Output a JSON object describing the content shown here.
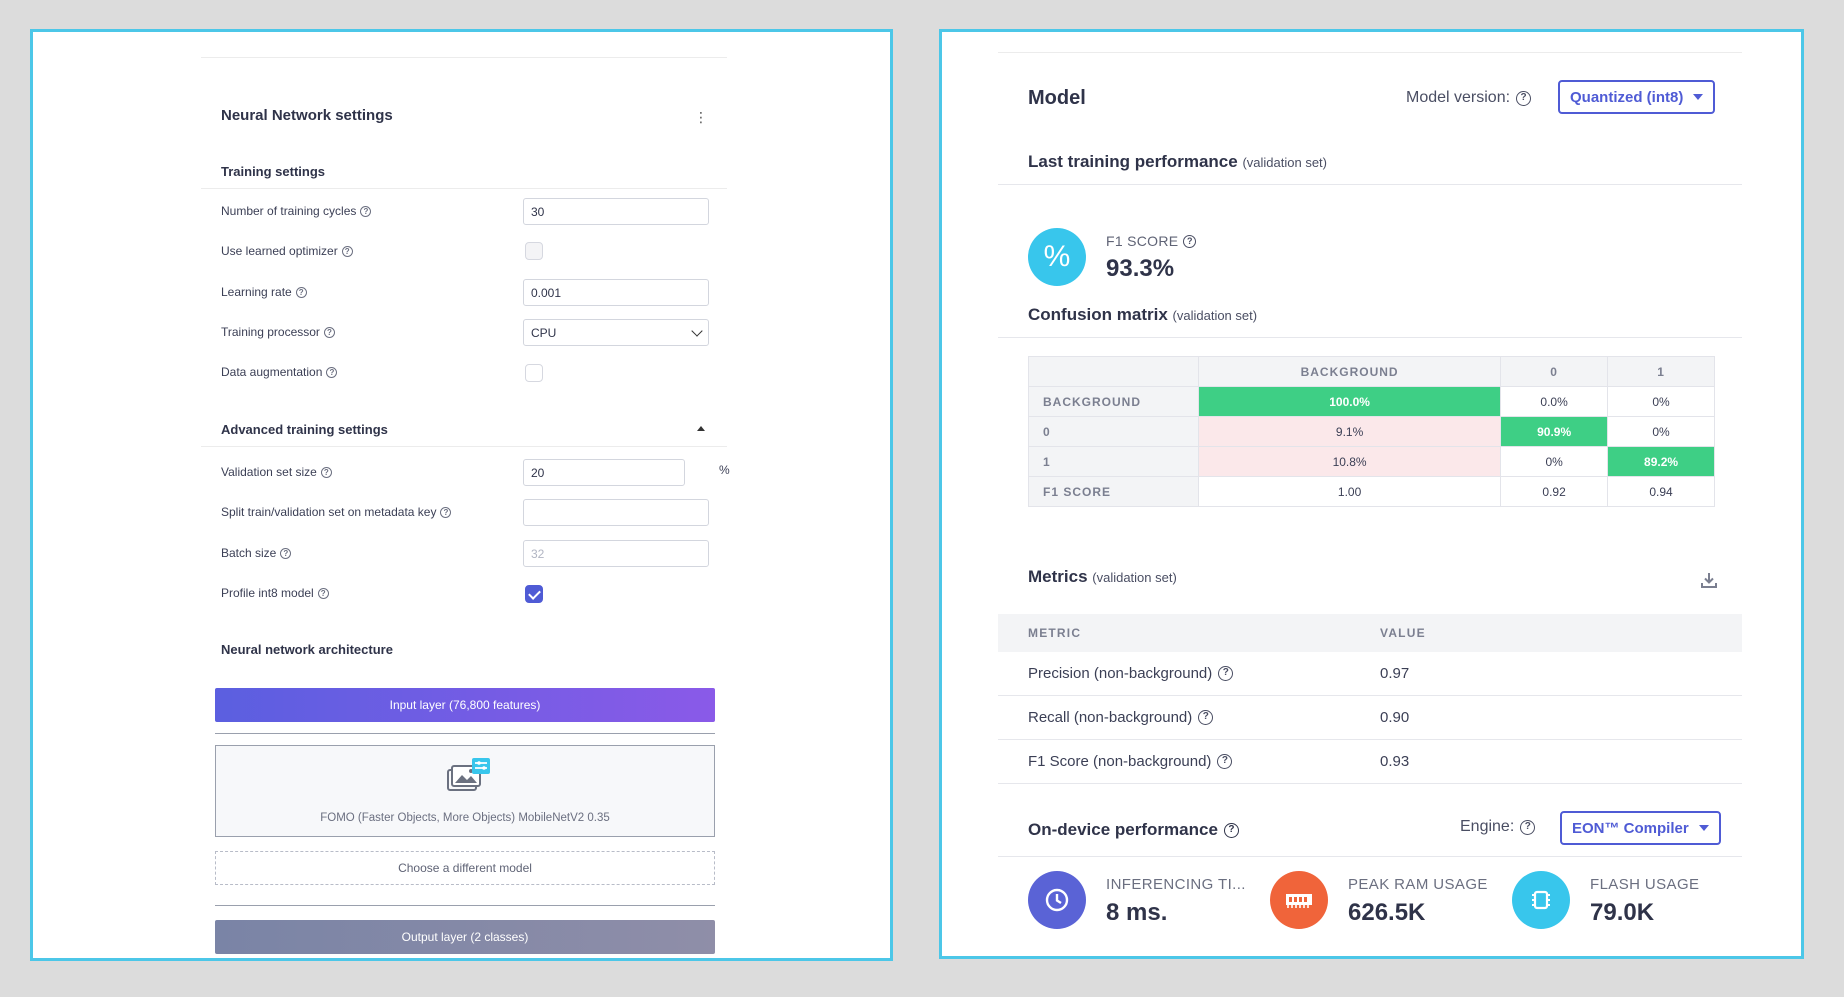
{
  "left": {
    "title": "Neural Network settings",
    "menu_icon": "kebab-icon",
    "training_settings": {
      "heading": "Training settings",
      "cycles_label": "Number of training cycles",
      "cycles_value": "30",
      "optimizer_label": "Use learned optimizer",
      "optimizer_checked": false,
      "lr_label": "Learning rate",
      "lr_value": "0.001",
      "processor_label": "Training processor",
      "processor_value": "CPU",
      "augmentation_label": "Data augmentation",
      "augmentation_checked": false
    },
    "advanced": {
      "heading": "Advanced training settings",
      "validation_label": "Validation set size",
      "validation_value": "20",
      "validation_unit": "%",
      "split_label": "Split train/validation set on metadata key",
      "split_value": "",
      "batch_label": "Batch size",
      "batch_placeholder": "32",
      "profile_label": "Profile int8 model",
      "profile_checked": true
    },
    "architecture": {
      "heading": "Neural network architecture",
      "input_layer": "Input layer (76,800 features)",
      "model_name": "FOMO (Faster Objects, More Objects) MobileNetV2 0.35",
      "choose_model": "Choose a different model",
      "output_layer": "Output layer (2 classes)"
    }
  },
  "right": {
    "title": "Model",
    "version_label": "Model version:",
    "version_value": "Quantized (int8)",
    "last_training": {
      "title": "Last training performance",
      "note": "(validation set)"
    },
    "f1": {
      "label": "F1 SCORE",
      "value": "93.3%",
      "icon_glyph": "%"
    },
    "confusion": {
      "title": "Confusion matrix",
      "note": "(validation set)",
      "columns": [
        "",
        "BACKGROUND",
        "0",
        "1"
      ],
      "rows": [
        {
          "label": "BACKGROUND",
          "cells": [
            "100.0%",
            "0.0%",
            "0%"
          ]
        },
        {
          "label": "0",
          "cells": [
            "9.1%",
            "90.9%",
            "0%"
          ]
        },
        {
          "label": "1",
          "cells": [
            "10.8%",
            "0%",
            "89.2%"
          ]
        },
        {
          "label": "F1 SCORE",
          "cells": [
            "1.00",
            "0.92",
            "0.94"
          ]
        }
      ]
    },
    "metrics": {
      "title": "Metrics",
      "note": "(validation set)",
      "col_metric": "METRIC",
      "col_value": "VALUE",
      "rows": [
        {
          "name": "Precision (non-background)",
          "value": "0.97"
        },
        {
          "name": "Recall (non-background)",
          "value": "0.90"
        },
        {
          "name": "F1 Score (non-background)",
          "value": "0.93"
        }
      ]
    },
    "on_device": {
      "title": "On-device performance",
      "engine_label": "Engine:",
      "engine_value": "EON™ Compiler",
      "items": [
        {
          "label": "INFERENCING TI...",
          "value": "8 ms.",
          "color": "#5a63d6",
          "icon": "clock-icon"
        },
        {
          "label": "PEAK RAM USAGE",
          "value": "626.5K",
          "color": "#f0643a",
          "icon": "ram-icon"
        },
        {
          "label": "FLASH USAGE",
          "value": "79.0K",
          "color": "#38c6ec",
          "icon": "chip-icon"
        }
      ]
    }
  },
  "colors": {
    "accent": "#4f5bd5",
    "panel_border": "#4cc7e8",
    "good_cell": "#3ecf85",
    "bad_cell": "#fbe8ea"
  }
}
